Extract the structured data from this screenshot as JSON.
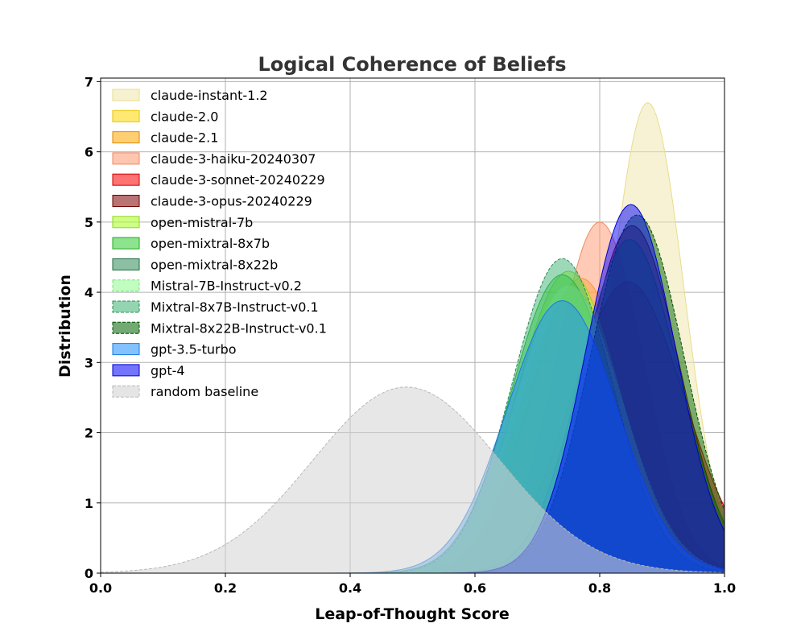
{
  "chart_data": {
    "type": "area",
    "title": "Logical Coherence of Beliefs",
    "xlabel": "Leap-of-Thought Score",
    "ylabel": "Distribution",
    "xlim": [
      0.0,
      1.0
    ],
    "ylim": [
      0,
      7.05
    ],
    "xticks": [
      "0.0",
      "0.2",
      "0.4",
      "0.6",
      "0.8",
      "1.0"
    ],
    "yticks": [
      "0",
      "1",
      "2",
      "3",
      "4",
      "5",
      "6",
      "7"
    ],
    "grid": true,
    "legend_position": "top-left",
    "series": [
      {
        "name": "claude-instant-1.2",
        "peak_x": 0.877,
        "peak_y": 6.7,
        "sd": 0.058,
        "fill": "#f0e8b0",
        "stroke": "#e8dd8c",
        "alpha": 0.55,
        "dashed": false
      },
      {
        "name": "claude-2.0",
        "peak_x": 0.76,
        "peak_y": 4.0,
        "sd": 0.085,
        "fill": "#ffd700",
        "stroke": "#e6c200",
        "alpha": 0.5,
        "dashed": false
      },
      {
        "name": "claude-2.1",
        "peak_x": 0.77,
        "peak_y": 4.2,
        "sd": 0.08,
        "fill": "#ffa500",
        "stroke": "#e08a00",
        "alpha": 0.5,
        "dashed": false
      },
      {
        "name": "claude-3-haiku-20240307",
        "peak_x": 0.8,
        "peak_y": 5.0,
        "sd": 0.07,
        "fill": "#ffa07a",
        "stroke": "#f08a60",
        "alpha": 0.55,
        "dashed": false
      },
      {
        "name": "claude-3-sonnet-20240229",
        "peak_x": 0.845,
        "peak_y": 4.15,
        "sd": 0.09,
        "fill": "#ff0000",
        "stroke": "#cc0000",
        "alpha": 0.5,
        "dashed": false
      },
      {
        "name": "claude-3-opus-20240229",
        "peak_x": 0.852,
        "peak_y": 4.95,
        "sd": 0.075,
        "fill": "#800000",
        "stroke": "#6e0000",
        "alpha": 0.5,
        "dashed": false
      },
      {
        "name": "open-mistral-7b",
        "peak_x": 0.75,
        "peak_y": 4.3,
        "sd": 0.082,
        "fill": "#adff2f",
        "stroke": "#8fd61f",
        "alpha": 0.55,
        "dashed": false
      },
      {
        "name": "open-mixtral-8x7b",
        "peak_x": 0.74,
        "peak_y": 4.25,
        "sd": 0.082,
        "fill": "#32cd32",
        "stroke": "#22a822",
        "alpha": 0.5,
        "dashed": false
      },
      {
        "name": "open-mixtral-8x22b",
        "peak_x": 0.848,
        "peak_y": 4.75,
        "sd": 0.078,
        "fill": "#2e8b57",
        "stroke": "#1f6e42",
        "alpha": 0.5,
        "dashed": false
      },
      {
        "name": "Mistral-7B-Instruct-v0.2",
        "peak_x": 0.75,
        "peak_y": 4.1,
        "sd": 0.085,
        "fill": "#98fb98",
        "stroke": "#80e080",
        "alpha": 0.55,
        "dashed": true
      },
      {
        "name": "Mixtral-8x7B-Instruct-v0.1",
        "peak_x": 0.74,
        "peak_y": 4.48,
        "sd": 0.08,
        "fill": "#3cb371",
        "stroke": "#2e8b57",
        "alpha": 0.5,
        "dashed": true
      },
      {
        "name": "Mixtral-8x22B-Instruct-v0.1",
        "peak_x": 0.86,
        "peak_y": 5.1,
        "sd": 0.075,
        "fill": "#006400",
        "stroke": "#004d00",
        "alpha": 0.5,
        "dashed": true
      },
      {
        "name": "gpt-3.5-turbo",
        "peak_x": 0.74,
        "peak_y": 3.88,
        "sd": 0.088,
        "fill": "#1e90ff",
        "stroke": "#1a7ae0",
        "alpha": 0.5,
        "dashed": false
      },
      {
        "name": "gpt-4",
        "peak_x": 0.85,
        "peak_y": 5.25,
        "sd": 0.072,
        "fill": "#0000ff",
        "stroke": "#0000cc",
        "alpha": 0.5,
        "dashed": false
      },
      {
        "name": "random baseline",
        "peak_x": 0.49,
        "peak_y": 2.65,
        "sd": 0.15,
        "fill": "#d3d3d3",
        "stroke": "#b8b8b8",
        "alpha": 0.55,
        "dashed": true
      }
    ]
  }
}
